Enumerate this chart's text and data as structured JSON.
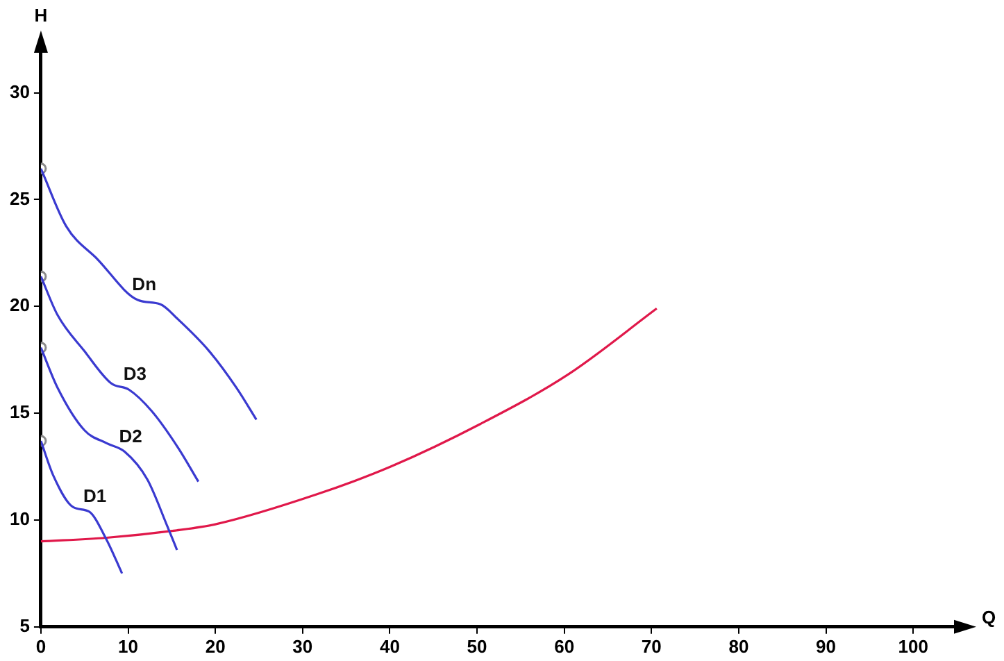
{
  "chart_data": {
    "type": "line",
    "xlabel": "Q",
    "ylabel": "H",
    "xlim": [
      0,
      105
    ],
    "ylim": [
      5,
      32
    ],
    "xticks": [
      0,
      10,
      20,
      30,
      40,
      50,
      60,
      70,
      80,
      90,
      100
    ],
    "yticks": [
      5,
      10,
      15,
      20,
      25,
      30
    ],
    "grid": false,
    "legend": false,
    "marker": "none",
    "line_style": "solid",
    "series": [
      {
        "name": "Dn",
        "color": "#3a3ad0",
        "x": [
          0,
          2.9,
          6.5,
          11.1,
          13.7,
          15.7,
          19.3,
          22.4,
          24.7
        ],
        "values": [
          26.45,
          23.75,
          22.2,
          20.3,
          20.1,
          19.4,
          17.9,
          16.2,
          14.7
        ]
      },
      {
        "name": "D3",
        "color": "#3a3ad0",
        "x": [
          0,
          1.9,
          5,
          8.05,
          10.1,
          12.7,
          15.7,
          18.05
        ],
        "values": [
          21.4,
          19.6,
          17.9,
          16.4,
          16.1,
          15.1,
          13.4,
          11.8
        ]
      },
      {
        "name": "D2",
        "color": "#3a3ad0",
        "x": [
          0,
          1.9,
          5,
          7.5,
          9.6,
          12.2,
          14.5,
          15.6
        ],
        "values": [
          18.07,
          16.2,
          14.2,
          13.6,
          13.2,
          11.9,
          9.7,
          8.6
        ]
      },
      {
        "name": "D1",
        "color": "#3a3ad0",
        "x": [
          0,
          1.4,
          3.7,
          5.5,
          7.5,
          9.3
        ],
        "values": [
          13.7,
          12.1,
          10.6,
          10.4,
          9.1,
          7.5
        ]
      },
      {
        "color": "#e0184a",
        "x": [
          0,
          7.5,
          15.2,
          20,
          31.6,
          40.1,
          50.4,
          60.4,
          70.6
        ],
        "values": [
          9.0,
          9.17,
          9.5,
          9.8,
          11.2,
          12.5,
          14.5,
          16.8,
          19.9
        ]
      },
      {
        "type": "scatter",
        "marker": "circle",
        "color": "#8a8a8a",
        "x": [
          0,
          0,
          0,
          0
        ],
        "values": [
          26.45,
          21.4,
          18.07,
          13.7
        ]
      }
    ]
  }
}
